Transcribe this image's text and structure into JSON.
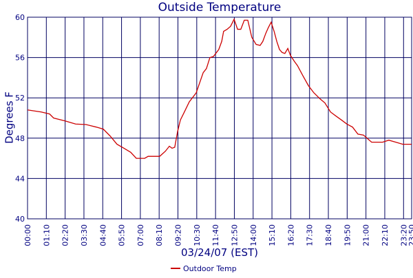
{
  "chart_data": {
    "type": "line",
    "title": "Outside Temperature",
    "x_label": "03/24/07 (EST)",
    "y_label": "Degrees F",
    "x": [
      0,
      51,
      82,
      97,
      141,
      179,
      218,
      256,
      282,
      308,
      333,
      359,
      384,
      405,
      436,
      449,
      492,
      513,
      528,
      538,
      548,
      559,
      569,
      584,
      602,
      628,
      654,
      666,
      679,
      692,
      712,
      723,
      730,
      743,
      756,
      769,
      782,
      794,
      807,
      820,
      835,
      851,
      866,
      876,
      887,
      897,
      907,
      918,
      928,
      938,
      948,
      958,
      969,
      979,
      994,
      1005,
      1025,
      1046,
      1066,
      1089,
      1107,
      1128,
      1148,
      1169,
      1189,
      1210,
      1230,
      1251,
      1281,
      1322,
      1345,
      1371,
      1397,
      1430
    ],
    "series": [
      {
        "name": "Outdoor Temp",
        "color": "#cc0000",
        "values": [
          50.8,
          50.6,
          50.4,
          50.0,
          49.7,
          49.4,
          49.35,
          49.1,
          48.9,
          48.2,
          47.4,
          47.0,
          46.6,
          46.0,
          46.0,
          46.2,
          46.2,
          46.7,
          47.2,
          47.0,
          47.1,
          48.7,
          49.8,
          50.6,
          51.6,
          52.5,
          54.5,
          54.9,
          56.0,
          56.1,
          56.8,
          57.6,
          58.6,
          58.8,
          59.1,
          59.8,
          58.8,
          58.8,
          59.7,
          59.7,
          58.0,
          57.3,
          57.2,
          57.6,
          58.4,
          59.0,
          59.5,
          58.6,
          57.6,
          56.8,
          56.5,
          56.4,
          56.9,
          56.2,
          55.6,
          55.2,
          54.2,
          53.2,
          52.5,
          51.9,
          51.5,
          50.6,
          50.2,
          49.8,
          49.4,
          49.1,
          48.4,
          48.3,
          47.6,
          47.6,
          47.8,
          47.6,
          47.4,
          47.4
        ]
      }
    ],
    "xlim": [
      0,
      1430
    ],
    "xticks": [
      {
        "value": 0,
        "label": "00:00"
      },
      {
        "value": 70,
        "label": "01:10"
      },
      {
        "value": 140,
        "label": "02:20"
      },
      {
        "value": 210,
        "label": "03:30"
      },
      {
        "value": 280,
        "label": "04:40"
      },
      {
        "value": 350,
        "label": "05:50"
      },
      {
        "value": 420,
        "label": "07:00"
      },
      {
        "value": 490,
        "label": "08:10"
      },
      {
        "value": 560,
        "label": "09:20"
      },
      {
        "value": 630,
        "label": "10:30"
      },
      {
        "value": 700,
        "label": "11:40"
      },
      {
        "value": 770,
        "label": "12:50"
      },
      {
        "value": 840,
        "label": "14:00"
      },
      {
        "value": 910,
        "label": "15:10"
      },
      {
        "value": 980,
        "label": "16:20"
      },
      {
        "value": 1050,
        "label": "17:30"
      },
      {
        "value": 1120,
        "label": "18:40"
      },
      {
        "value": 1190,
        "label": "19:50"
      },
      {
        "value": 1260,
        "label": "21:00"
      },
      {
        "value": 1330,
        "label": "22:10"
      },
      {
        "value": 1400,
        "label": "23:20"
      },
      {
        "value": 1430,
        "label": "23:50"
      }
    ],
    "ylim": [
      40,
      60
    ],
    "yticks": [
      40,
      44,
      48,
      52,
      56,
      60
    ],
    "grid": true
  }
}
